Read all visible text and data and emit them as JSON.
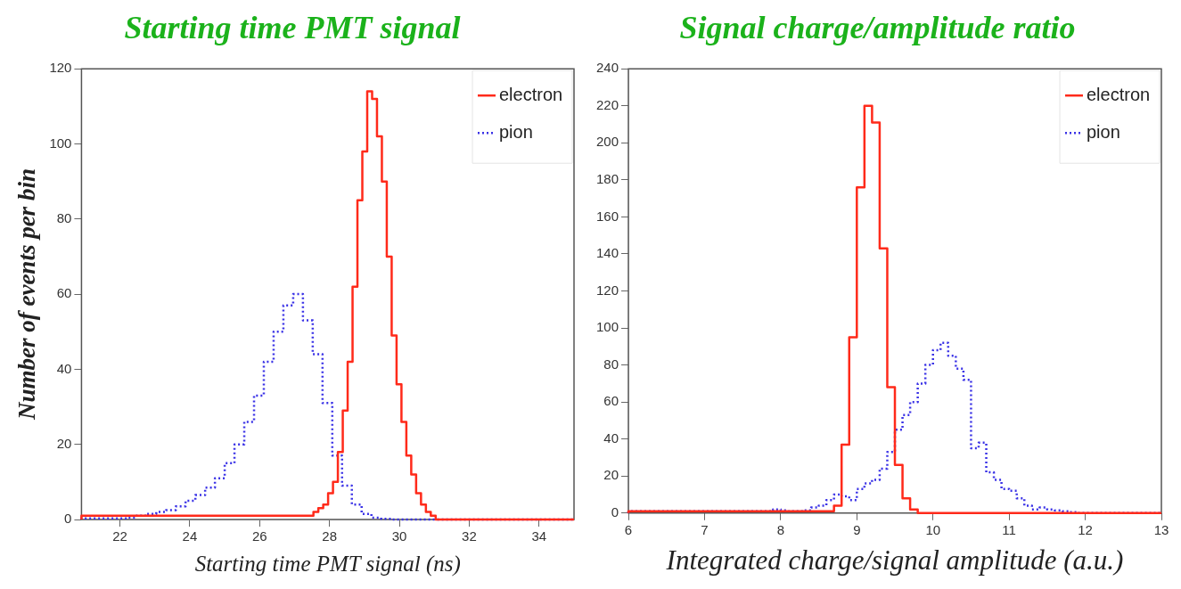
{
  "chart_data": [
    {
      "type": "step",
      "title": "Starting time PMT signal",
      "xlabel": "Starting time PMT signal (ns)",
      "ylabel": "Number of events per bin",
      "xlim": [
        20.9,
        35
      ],
      "xticks": [
        22,
        24,
        26,
        28,
        30,
        32,
        34
      ],
      "ylim": [
        0,
        120
      ],
      "yticks": [
        0,
        20,
        40,
        60,
        80,
        100,
        120
      ],
      "legend": "top right",
      "series": [
        {
          "name": "electron",
          "color": "#ff2a1a",
          "line_style": "solid",
          "x": [
            20.9,
            27.54,
            27.68,
            27.82,
            27.96,
            28.1,
            28.24,
            28.38,
            28.52,
            28.66,
            28.8,
            28.94,
            29.08,
            29.22,
            29.36,
            29.5,
            29.64,
            29.78,
            29.92,
            30.06,
            30.2,
            30.34,
            30.48,
            30.62,
            30.76,
            30.9,
            31.04,
            31.18,
            35
          ],
          "values": [
            0,
            1,
            2,
            3,
            4,
            7,
            10,
            18,
            29,
            42,
            62,
            85,
            98,
            114,
            112,
            102,
            90,
            70,
            49,
            36,
            26,
            17,
            12,
            7,
            4,
            2,
            1,
            0,
            0
          ]
        },
        {
          "name": "pion",
          "color": "#3a32e6",
          "line_style": "dotted",
          "x": [
            20.9,
            22.2,
            22.48,
            22.76,
            23.04,
            23.32,
            23.6,
            23.88,
            24.16,
            24.44,
            24.72,
            25,
            25.28,
            25.56,
            25.84,
            26.12,
            26.4,
            26.68,
            26.96,
            27.24,
            27.52,
            27.8,
            28.08,
            28.36,
            28.64,
            28.92,
            29.2,
            29.48,
            29.76,
            30.04,
            35
          ],
          "values": [
            0,
            0.3,
            0.5,
            1,
            1.5,
            2,
            2.5,
            3.5,
            5,
            6.5,
            8.5,
            11,
            15,
            20,
            26,
            33,
            42,
            50,
            57,
            60,
            53,
            44,
            31,
            17,
            9,
            4,
            1.5,
            0.5,
            0.2,
            0,
            0
          ]
        }
      ]
    },
    {
      "type": "step",
      "title": "Signal charge/amplitude ratio",
      "xlabel": "Integrated charge/signal amplitude (a.u.)",
      "xlim": [
        6,
        13
      ],
      "xticks": [
        6,
        7,
        8,
        9,
        10,
        11,
        12,
        13
      ],
      "ylim": [
        0,
        240
      ],
      "yticks": [
        0,
        20,
        40,
        60,
        80,
        100,
        120,
        140,
        160,
        180,
        200,
        220,
        240
      ],
      "legend": "top right",
      "series": [
        {
          "name": "electron",
          "color": "#ff2a1a",
          "line_style": "solid",
          "x": [
            6,
            8.7,
            8.8,
            8.9,
            9,
            9.1,
            9.2,
            9.3,
            9.4,
            9.5,
            9.6,
            9.7,
            9.8,
            9.9,
            13
          ],
          "values": [
            0,
            1,
            4,
            37,
            95,
            176,
            220,
            211,
            143,
            68,
            26,
            8,
            2,
            0,
            0
          ]
        },
        {
          "name": "pion",
          "color": "#3a32e6",
          "line_style": "dotted",
          "x": [
            6,
            7.8,
            7.9,
            8,
            8.1,
            8.2,
            8.3,
            8.4,
            8.5,
            8.6,
            8.7,
            8.8,
            8.9,
            9,
            9.1,
            9.2,
            9.3,
            9.4,
            9.5,
            9.6,
            9.7,
            9.8,
            9.9,
            10,
            10.1,
            10.2,
            10.3,
            10.4,
            10.5,
            10.6,
            10.7,
            10.8,
            10.9,
            11,
            11.1,
            11.2,
            11.3,
            11.4,
            11.5,
            11.6,
            11.7,
            11.8,
            11.9,
            12,
            13
          ],
          "values": [
            0,
            1,
            1,
            2,
            1.5,
            1,
            1,
            1.5,
            3,
            4,
            7,
            10,
            9,
            7,
            13,
            16,
            18,
            24,
            33,
            45,
            53,
            60,
            70,
            80,
            88,
            92,
            85,
            78,
            72,
            35,
            38,
            22,
            18,
            13,
            12,
            8,
            4,
            2,
            3,
            2,
            1.5,
            1,
            0.5,
            0,
            0
          ]
        }
      ]
    }
  ]
}
